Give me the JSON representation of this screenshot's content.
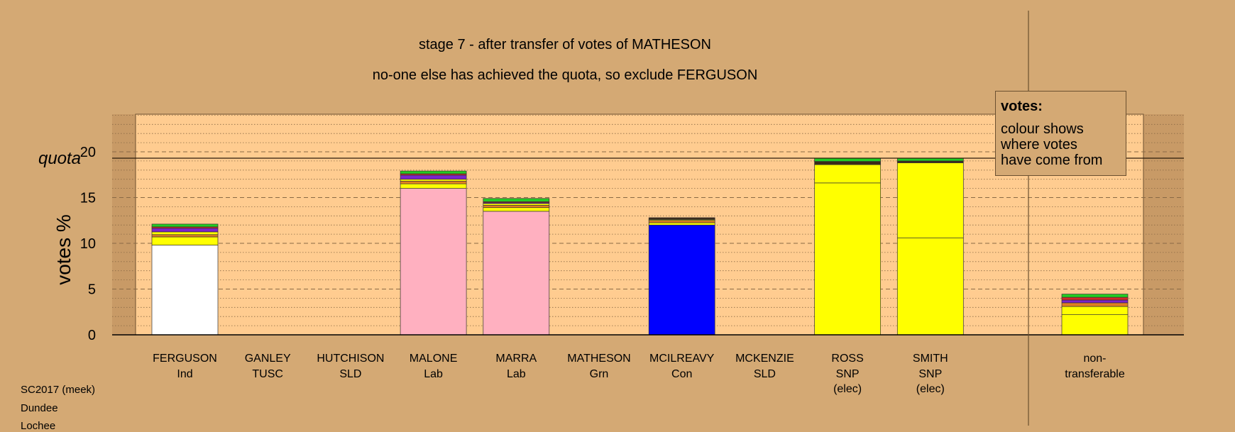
{
  "titles": {
    "line1": "stage 7 - after transfer of votes of MATHESON",
    "line2": "no-one else has achieved the quota, so exclude FERGUSON"
  },
  "legend": {
    "title": "votes:",
    "text": [
      "colour shows",
      "where votes",
      "have come from"
    ]
  },
  "footer": [
    "SC2017 (meek)",
    "Dundee",
    "Lochee"
  ],
  "colors": {
    "background": "#d4a974",
    "plot": "#ffcc90",
    "ind": "#ffffff",
    "lab": "#ffb0c0",
    "con": "#0000ff",
    "snp": "#ffff00",
    "grn": "#22cc22",
    "sld": "#7b22cc",
    "tusc": "#d22a2a",
    "dark": "#3a2a1a",
    "orange": "#e08020"
  },
  "chart_data": {
    "type": "bar",
    "stacked": true,
    "ylabel": "votes %",
    "ylim": [
      0,
      24
    ],
    "yticks": [
      0,
      5,
      10,
      15,
      20
    ],
    "quota": 19.3,
    "quota_label": "quota",
    "grid": true,
    "legend_position": "top-right",
    "candidates": [
      {
        "name": "FERGUSON",
        "party": "Ind",
        "elec": "",
        "segments": [
          {
            "color": "ind",
            "value": 9.8
          },
          {
            "color": "snp",
            "value": 0.9
          },
          {
            "color": "orange",
            "value": 0.25
          },
          {
            "color": "snp",
            "value": 0.3
          },
          {
            "color": "sld",
            "value": 0.4
          },
          {
            "color": "tusc",
            "value": 0.15
          },
          {
            "color": "grn",
            "value": 0.3
          }
        ]
      },
      {
        "name": "GANLEY",
        "party": "TUSC",
        "elec": "",
        "segments": []
      },
      {
        "name": "HUTCHISON",
        "party": "SLD",
        "elec": "",
        "segments": []
      },
      {
        "name": "MALONE",
        "party": "Lab",
        "elec": "",
        "segments": [
          {
            "color": "lab",
            "value": 16.0
          },
          {
            "color": "snp",
            "value": 0.5
          },
          {
            "color": "orange",
            "value": 0.3
          },
          {
            "color": "snp",
            "value": 0.2
          },
          {
            "color": "sld",
            "value": 0.45
          },
          {
            "color": "tusc",
            "value": 0.15
          },
          {
            "color": "grn",
            "value": 0.3
          }
        ]
      },
      {
        "name": "MARRA",
        "party": "Lab",
        "elec": "",
        "segments": [
          {
            "color": "lab",
            "value": 13.5
          },
          {
            "color": "snp",
            "value": 0.4
          },
          {
            "color": "orange",
            "value": 0.25
          },
          {
            "color": "snp",
            "value": 0.2
          },
          {
            "color": "sld",
            "value": 0.1
          },
          {
            "color": "tusc",
            "value": 0.1
          },
          {
            "color": "grn",
            "value": 0.35
          }
        ]
      },
      {
        "name": "MATHESON",
        "party": "Grn",
        "elec": "",
        "segments": []
      },
      {
        "name": "MCILREAVY",
        "party": "Con",
        "elec": "",
        "segments": [
          {
            "color": "con",
            "value": 12.0
          },
          {
            "color": "snp",
            "value": 0.25
          },
          {
            "color": "orange",
            "value": 0.25
          },
          {
            "color": "snp",
            "value": 0.1
          },
          {
            "color": "dark",
            "value": 0.2
          }
        ]
      },
      {
        "name": "MCKENZIE",
        "party": "SLD",
        "elec": "",
        "segments": []
      },
      {
        "name": "ROSS",
        "party": "SNP",
        "elec": "(elec)",
        "segments": [
          {
            "color": "snp",
            "value": 16.6
          },
          {
            "color": "snp",
            "value": 2.0
          },
          {
            "color": "dark",
            "value": 0.35
          },
          {
            "color": "grn",
            "value": 0.35
          }
        ]
      },
      {
        "name": "SMITH",
        "party": "SNP",
        "elec": "(elec)",
        "segments": [
          {
            "color": "snp",
            "value": 10.6
          },
          {
            "color": "snp",
            "value": 8.2
          },
          {
            "color": "dark",
            "value": 0.2
          },
          {
            "color": "grn",
            "value": 0.3
          }
        ]
      }
    ],
    "nontransferable": {
      "label": [
        "non-",
        "transferable"
      ],
      "segments": [
        {
          "color": "snp",
          "value": 2.2
        },
        {
          "color": "snp",
          "value": 0.9
        },
        {
          "color": "orange",
          "value": 0.4
        },
        {
          "color": "sld",
          "value": 0.3
        },
        {
          "color": "tusc",
          "value": 0.3
        },
        {
          "color": "grn",
          "value": 0.35
        }
      ]
    }
  }
}
